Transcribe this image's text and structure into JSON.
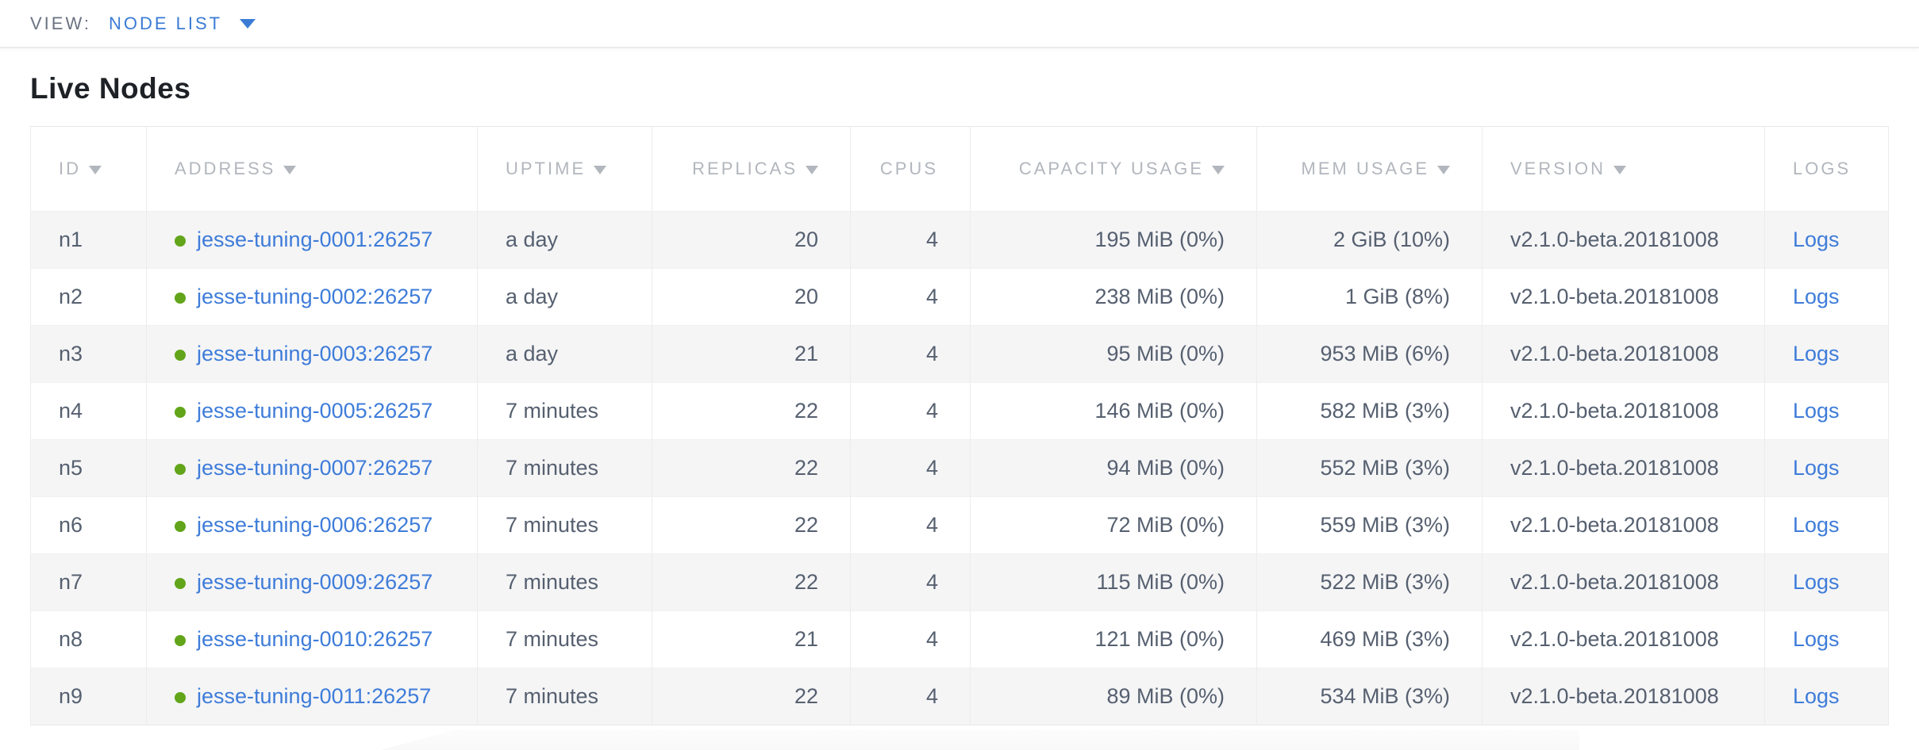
{
  "view_bar": {
    "label": "VIEW:",
    "selected": "NODE LIST"
  },
  "page": {
    "title": "Live Nodes"
  },
  "colors": {
    "link_blue": "#3e7cd9",
    "selector_blue": "#3a7bd5",
    "live_dot_green": "#62a51a",
    "header_gray": "#b2b6bd",
    "body_text": "#566070",
    "row_stripe": "#f5f5f6"
  },
  "table": {
    "columns": [
      {
        "key": "id",
        "label": "ID",
        "sortable": true,
        "align": "left"
      },
      {
        "key": "address",
        "label": "ADDRESS",
        "sortable": true,
        "align": "left"
      },
      {
        "key": "uptime",
        "label": "UPTIME",
        "sortable": true,
        "align": "left"
      },
      {
        "key": "replicas",
        "label": "REPLICAS",
        "sortable": true,
        "align": "right"
      },
      {
        "key": "cpus",
        "label": "CPUS",
        "sortable": false,
        "align": "right"
      },
      {
        "key": "capacity",
        "label": "CAPACITY USAGE",
        "sortable": true,
        "align": "right"
      },
      {
        "key": "mem",
        "label": "MEM USAGE",
        "sortable": true,
        "align": "right"
      },
      {
        "key": "version",
        "label": "VERSION",
        "sortable": true,
        "align": "left"
      },
      {
        "key": "logs",
        "label": "LOGS",
        "sortable": false,
        "align": "left"
      }
    ],
    "rows": [
      {
        "id": "n1",
        "status": "live",
        "address": "jesse-tuning-0001:26257",
        "uptime": "a day",
        "replicas": "20",
        "cpus": "4",
        "capacity": "195 MiB (0%)",
        "mem": "2 GiB (10%)",
        "version": "v2.1.0-beta.20181008",
        "logs": "Logs"
      },
      {
        "id": "n2",
        "status": "live",
        "address": "jesse-tuning-0002:26257",
        "uptime": "a day",
        "replicas": "20",
        "cpus": "4",
        "capacity": "238 MiB (0%)",
        "mem": "1 GiB (8%)",
        "version": "v2.1.0-beta.20181008",
        "logs": "Logs"
      },
      {
        "id": "n3",
        "status": "live",
        "address": "jesse-tuning-0003:26257",
        "uptime": "a day",
        "replicas": "21",
        "cpus": "4",
        "capacity": "95 MiB (0%)",
        "mem": "953 MiB (6%)",
        "version": "v2.1.0-beta.20181008",
        "logs": "Logs"
      },
      {
        "id": "n4",
        "status": "live",
        "address": "jesse-tuning-0005:26257",
        "uptime": "7 minutes",
        "replicas": "22",
        "cpus": "4",
        "capacity": "146 MiB (0%)",
        "mem": "582 MiB (3%)",
        "version": "v2.1.0-beta.20181008",
        "logs": "Logs"
      },
      {
        "id": "n5",
        "status": "live",
        "address": "jesse-tuning-0007:26257",
        "uptime": "7 minutes",
        "replicas": "22",
        "cpus": "4",
        "capacity": "94 MiB (0%)",
        "mem": "552 MiB (3%)",
        "version": "v2.1.0-beta.20181008",
        "logs": "Logs"
      },
      {
        "id": "n6",
        "status": "live",
        "address": "jesse-tuning-0006:26257",
        "uptime": "7 minutes",
        "replicas": "22",
        "cpus": "4",
        "capacity": "72 MiB (0%)",
        "mem": "559 MiB (3%)",
        "version": "v2.1.0-beta.20181008",
        "logs": "Logs"
      },
      {
        "id": "n7",
        "status": "live",
        "address": "jesse-tuning-0009:26257",
        "uptime": "7 minutes",
        "replicas": "22",
        "cpus": "4",
        "capacity": "115 MiB (0%)",
        "mem": "522 MiB (3%)",
        "version": "v2.1.0-beta.20181008",
        "logs": "Logs"
      },
      {
        "id": "n8",
        "status": "live",
        "address": "jesse-tuning-0010:26257",
        "uptime": "7 minutes",
        "replicas": "21",
        "cpus": "4",
        "capacity": "121 MiB (0%)",
        "mem": "469 MiB (3%)",
        "version": "v2.1.0-beta.20181008",
        "logs": "Logs"
      },
      {
        "id": "n9",
        "status": "live",
        "address": "jesse-tuning-0011:26257",
        "uptime": "7 minutes",
        "replicas": "22",
        "cpus": "4",
        "capacity": "89 MiB (0%)",
        "mem": "534 MiB (3%)",
        "version": "v2.1.0-beta.20181008",
        "logs": "Logs"
      }
    ]
  }
}
